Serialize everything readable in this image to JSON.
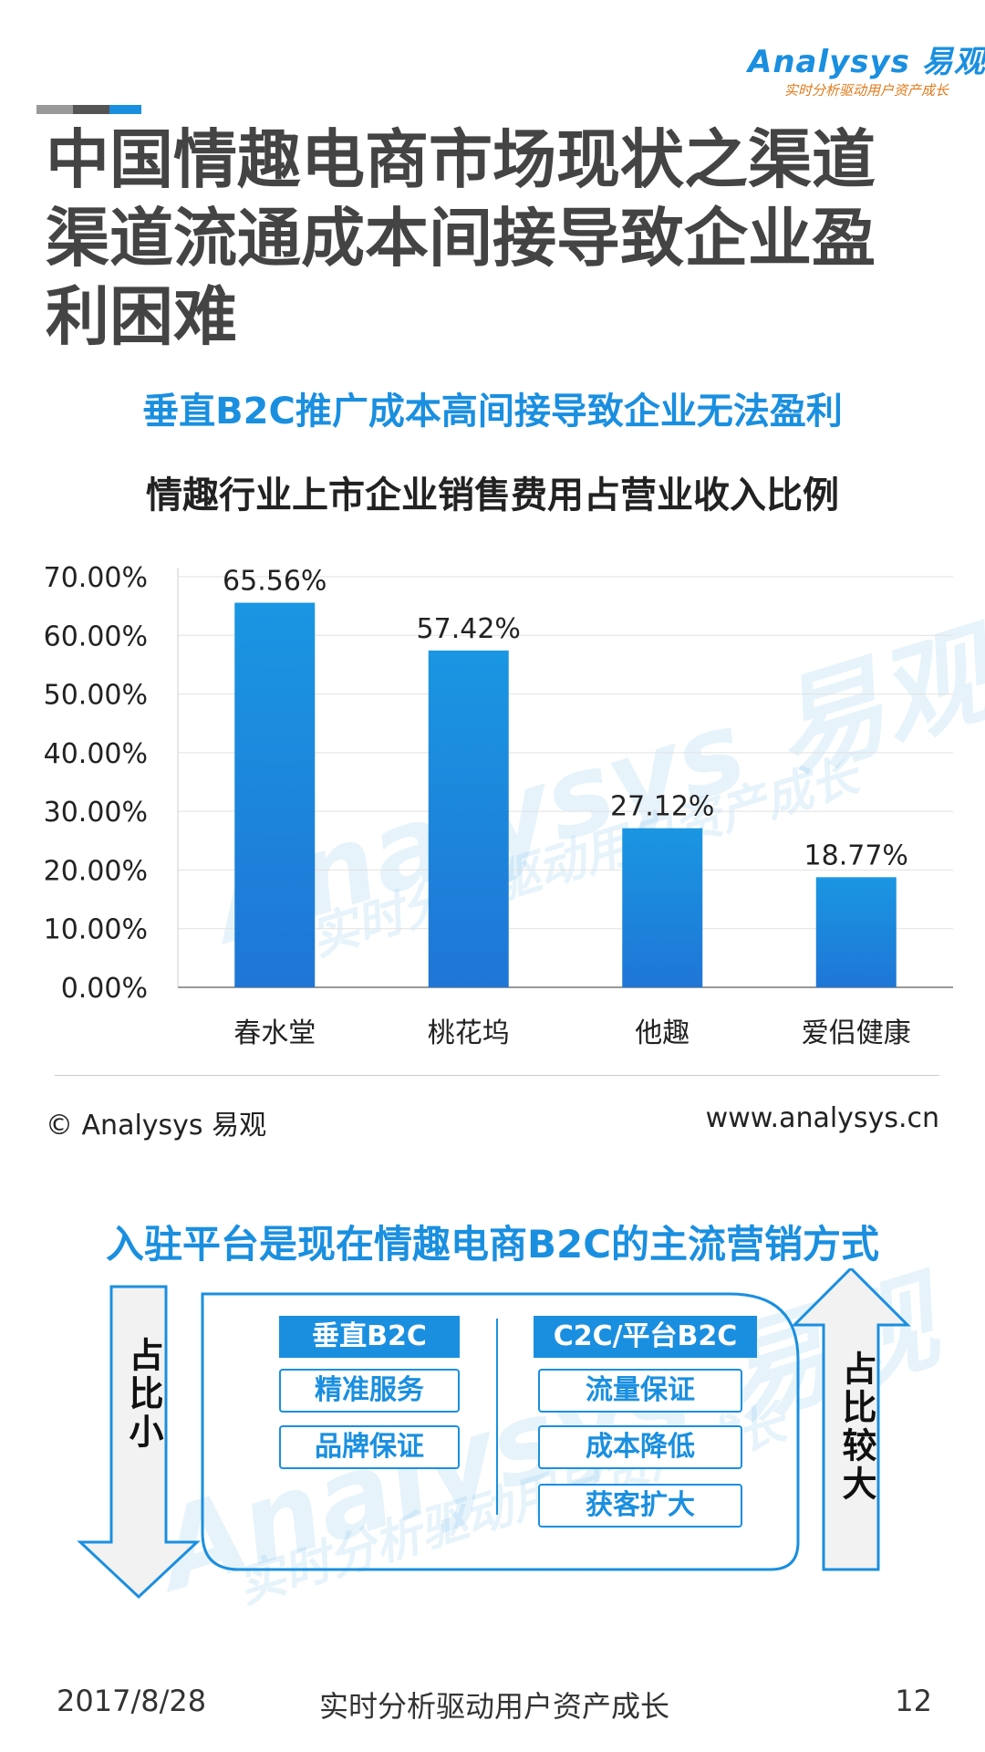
{
  "header": {
    "logo_text": "Analysys 易观",
    "logo_tagline": "实时分析驱动用户资产成长",
    "accent_colors": [
      "#999999",
      "#555555",
      "#1a8fe0"
    ],
    "title_lines": [
      "中国情趣电商市场现状之渠道",
      "渠道流通成本间接导致企业盈",
      "利困难"
    ]
  },
  "chart_section": {
    "subtitle": "垂直B2C推广成本高间接导致企业无法盈利",
    "title": "情趣行业上市企业销售费用占营业收入比例"
  },
  "chart_data": {
    "type": "bar",
    "title": "情趣行业上市企业销售费用占营业收入比例",
    "categories": [
      "春水堂",
      "桃花坞",
      "他趣",
      "爱侣健康"
    ],
    "values": [
      65.56,
      57.42,
      27.12,
      18.77
    ],
    "data_labels": [
      "65.56%",
      "57.42%",
      "27.12%",
      "18.77%"
    ],
    "ylim": [
      0,
      70
    ],
    "yticks": [
      0,
      10,
      20,
      30,
      40,
      50,
      60,
      70
    ],
    "ytick_labels": [
      "0.00%",
      "10.00%",
      "20.00%",
      "30.00%",
      "40.00%",
      "50.00%",
      "60.00%",
      "70.00%"
    ],
    "grid": true,
    "bar_color": "#1a8fe0"
  },
  "watermark": {
    "brand": "Analysys 易观",
    "tagline": "实时分析驱动用户资产成长"
  },
  "footer": {
    "copyright": "© Analysys 易观",
    "website": "www.analysys.cn"
  },
  "diagram": {
    "title": "入驻平台是现在情趣电商B2C的主流营销方式",
    "left_arrow_text": "占比小",
    "right_arrow_text": "占比较大",
    "left_column": {
      "header": "垂直B2C",
      "items": [
        "精准服务",
        "品牌保证"
      ]
    },
    "right_column": {
      "header": "C2C/平台B2C",
      "items": [
        "流量保证",
        "成本降低",
        "获客扩大"
      ]
    }
  },
  "bottom_bar": {
    "date": "2017/8/28",
    "slogan": "实时分析驱动用户资产成长",
    "page_number": "12"
  }
}
